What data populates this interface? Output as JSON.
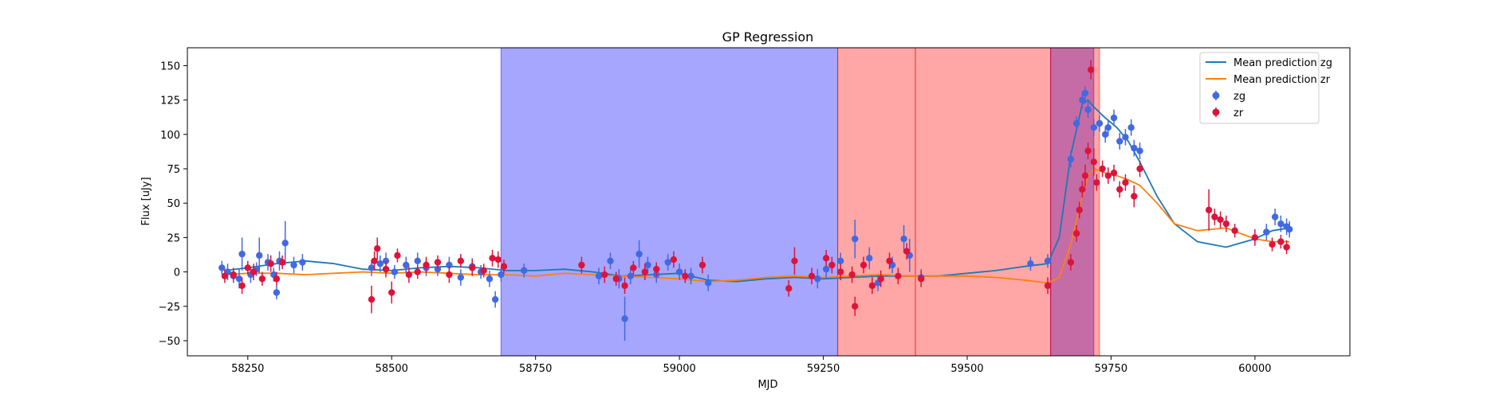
{
  "chart_data": {
    "type": "scatter",
    "title": "GP Regression",
    "xlabel": "MJD",
    "ylabel": "Flux [uJy]",
    "xlim": [
      58145,
      60165
    ],
    "ylim": [
      -61,
      163
    ],
    "xticks": [
      58250,
      58500,
      58750,
      59000,
      59250,
      59500,
      59750,
      60000
    ],
    "yticks": [
      -50,
      -25,
      0,
      25,
      50,
      75,
      100,
      125,
      150
    ],
    "grid": false,
    "legend_position": "top-right",
    "legend": [
      "Mean prediction zg",
      "Mean prediction zr",
      "zg",
      "zr"
    ],
    "colors": {
      "zg": "#4169e1",
      "zr": "#dc143c",
      "mean_zg": "#1f77b4",
      "mean_zr": "#ff7f0e",
      "span_blue": "#0000ff",
      "span_red": "#ff0000"
    },
    "shaded_regions": [
      {
        "x": [
          58690,
          59275
        ],
        "color": "#0000ff"
      },
      {
        "x": [
          59275,
          59410
        ],
        "color": "#ff0000"
      },
      {
        "x": [
          59410,
          59645
        ],
        "color": "#ff0000"
      },
      {
        "x": [
          59645,
          59720
        ],
        "color": "#0000ff"
      },
      {
        "x": [
          59645,
          59730
        ],
        "color": "#ff0000"
      }
    ],
    "series": [
      {
        "name": "Mean prediction zg",
        "type": "line",
        "x": [
          58210,
          58250,
          58300,
          58350,
          58400,
          58450,
          58500,
          58550,
          58600,
          58650,
          58700,
          58750,
          58800,
          58850,
          58900,
          58950,
          59000,
          59050,
          59100,
          59150,
          59200,
          59250,
          59300,
          59350,
          59400,
          59450,
          59500,
          59550,
          59600,
          59640,
          59660,
          59680,
          59700,
          59710,
          59720,
          59740,
          59760,
          59780,
          59800,
          59830,
          59860,
          59900,
          59950,
          60000,
          60030,
          60060
        ],
        "y": [
          1,
          3,
          6,
          8,
          6,
          2,
          1,
          3,
          4,
          3,
          1,
          1,
          2,
          0,
          -3,
          -2,
          -1,
          -6,
          -7,
          -5,
          -4,
          -5,
          -4,
          -3,
          -3,
          -3,
          -1,
          1,
          4,
          6,
          25,
          85,
          122,
          125,
          120,
          112,
          105,
          95,
          80,
          55,
          35,
          22,
          18,
          24,
          30,
          32
        ]
      },
      {
        "name": "Mean prediction zr",
        "type": "line",
        "x": [
          58210,
          58250,
          58300,
          58350,
          58400,
          58450,
          58500,
          58550,
          58600,
          58650,
          58700,
          58750,
          58800,
          58850,
          58900,
          58950,
          59000,
          59050,
          59100,
          59150,
          59200,
          59250,
          59300,
          59350,
          59400,
          59450,
          59500,
          59550,
          59600,
          59640,
          59660,
          59680,
          59700,
          59710,
          59720,
          59740,
          59760,
          59780,
          59800,
          59830,
          59860,
          59900,
          59950,
          60000,
          60030,
          60060
        ],
        "y": [
          -2,
          -1,
          -1,
          -2,
          -1,
          0,
          -1,
          0,
          -1,
          -2,
          -2,
          -3,
          -1,
          -2,
          -3,
          -4,
          -5,
          -7,
          -6,
          -4,
          -3,
          -4,
          -3,
          -2,
          -3,
          -3,
          -3,
          -4,
          -6,
          -8,
          -4,
          20,
          55,
          70,
          75,
          72,
          70,
          67,
          63,
          50,
          35,
          30,
          32,
          24,
          22,
          22
        ]
      },
      {
        "name": "zg",
        "type": "errorbar",
        "x": [
          58205,
          58215,
          58225,
          58235,
          58240,
          58255,
          58265,
          58270,
          58285,
          58295,
          58300,
          58305,
          58315,
          58330,
          58345,
          58465,
          58480,
          58490,
          58505,
          58525,
          58545,
          58560,
          58580,
          58600,
          58620,
          58640,
          58655,
          58670,
          58680,
          58690,
          58730,
          58860,
          58880,
          58895,
          58905,
          58915,
          58930,
          58945,
          58960,
          58980,
          59000,
          59020,
          59050,
          59240,
          59255,
          59280,
          59305,
          59330,
          59345,
          59370,
          59390,
          59400,
          59420,
          59610,
          59640,
          59680,
          59690,
          59700,
          59705,
          59710,
          59720,
          59730,
          59740,
          59745,
          59755,
          59765,
          59775,
          59785,
          59790,
          59800,
          60020,
          60035,
          60045,
          60055,
          60060
        ],
        "y": [
          3,
          0,
          -3,
          -5,
          13,
          -2,
          2,
          12,
          7,
          -2,
          -15,
          8,
          21,
          5,
          7,
          3,
          6,
          8,
          0,
          5,
          8,
          3,
          2,
          5,
          -4,
          4,
          0,
          -5,
          -20,
          -2,
          1,
          -3,
          8,
          -5,
          -34,
          -3,
          13,
          5,
          -2,
          7,
          0,
          -3,
          -8,
          -5,
          2,
          8,
          24,
          10,
          -8,
          5,
          24,
          12,
          -4,
          6,
          8,
          82,
          108,
          125,
          130,
          118,
          105,
          108,
          100,
          105,
          112,
          95,
          98,
          105,
          90,
          88,
          29,
          40,
          35,
          33,
          31
        ],
        "err": [
          5,
          6,
          5,
          7,
          12,
          6,
          5,
          13,
          6,
          5,
          5,
          7,
          16,
          6,
          6,
          6,
          6,
          6,
          5,
          6,
          6,
          6,
          5,
          6,
          6,
          6,
          5,
          6,
          6,
          5,
          5,
          6,
          6,
          7,
          16,
          6,
          10,
          6,
          6,
          6,
          6,
          6,
          6,
          7,
          7,
          6,
          14,
          8,
          6,
          6,
          10,
          12,
          6,
          5,
          5,
          6,
          5,
          6,
          5,
          6,
          6,
          6,
          6,
          6,
          6,
          6,
          6,
          6,
          6,
          6,
          6,
          6,
          6,
          6,
          6
        ]
      },
      {
        "name": "zr",
        "type": "errorbar",
        "x": [
          58210,
          58225,
          58240,
          58250,
          58260,
          58275,
          58290,
          58300,
          58310,
          58465,
          58470,
          58475,
          58490,
          58500,
          58510,
          58530,
          58545,
          58560,
          58580,
          58600,
          58620,
          58640,
          58660,
          58675,
          58685,
          58695,
          58830,
          58870,
          58890,
          58905,
          58920,
          58940,
          58960,
          58990,
          59010,
          59040,
          59190,
          59200,
          59230,
          59255,
          59265,
          59280,
          59300,
          59305,
          59320,
          59335,
          59350,
          59365,
          59380,
          59395,
          59420,
          59640,
          59680,
          59690,
          59695,
          59700,
          59705,
          59710,
          59715,
          59720,
          59725,
          59735,
          59745,
          59755,
          59765,
          59775,
          59790,
          59800,
          59920,
          59930,
          59940,
          59950,
          59965,
          60000,
          60030,
          60045,
          60055
        ],
        "y": [
          -3,
          -2,
          -10,
          3,
          0,
          -5,
          6,
          -5,
          7,
          -20,
          8,
          17,
          2,
          -15,
          12,
          -2,
          0,
          5,
          7,
          -2,
          8,
          3,
          1,
          10,
          9,
          4,
          5,
          -2,
          -5,
          -10,
          3,
          0,
          2,
          9,
          -3,
          5,
          -12,
          8,
          -3,
          10,
          5,
          0,
          -2,
          -25,
          5,
          -10,
          -5,
          8,
          -3,
          15,
          -5,
          -10,
          7,
          28,
          45,
          60,
          70,
          88,
          147,
          80,
          65,
          75,
          70,
          72,
          60,
          65,
          55,
          75,
          45,
          40,
          38,
          35,
          30,
          25,
          20,
          22,
          18
        ],
        "err": [
          5,
          5,
          6,
          5,
          6,
          5,
          6,
          5,
          5,
          10,
          7,
          8,
          6,
          8,
          5,
          6,
          5,
          6,
          5,
          6,
          5,
          6,
          5,
          6,
          6,
          5,
          6,
          6,
          5,
          6,
          5,
          6,
          5,
          6,
          5,
          6,
          6,
          10,
          6,
          6,
          6,
          6,
          6,
          7,
          6,
          6,
          6,
          6,
          6,
          6,
          6,
          6,
          6,
          6,
          6,
          6,
          8,
          6,
          7,
          10,
          6,
          6,
          6,
          6,
          6,
          6,
          8,
          6,
          15,
          6,
          6,
          6,
          5,
          6,
          5,
          5,
          5
        ]
      }
    ]
  }
}
